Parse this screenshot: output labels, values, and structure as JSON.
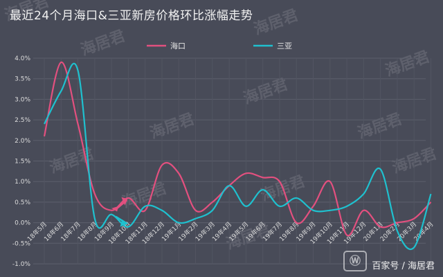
{
  "title": "最近24个月海口&三亚新房价格环比涨幅走势",
  "footer": "百家号 / 海居君",
  "watermark": "海居君",
  "chart_data": {
    "type": "line",
    "x": [
      "18年5月",
      "18年6月",
      "18年7月",
      "18年8月",
      "18年9月",
      "18年10月",
      "18年11月",
      "18年12月",
      "19年1月",
      "19年2月",
      "19年3月",
      "19年4月",
      "19年5月",
      "19年6月",
      "19年7月",
      "19年8月",
      "19年9月",
      "19年10月",
      "19年11月",
      "19年12月",
      "20年1月",
      "20年2月",
      "20年3月",
      "20年4月"
    ],
    "x_tick_labels": [
      "18年5月",
      "18年6月",
      "18年7月",
      "18年8月",
      "18年9月",
      "18年10月",
      "18年11月",
      "18年12月",
      "19年1月",
      "19年2月",
      "19年3月",
      "19年4月",
      "19年5月",
      "19年6月",
      "19年7月",
      "19年8月",
      "19年9月",
      "19年10月",
      "19年11月",
      "19年12月",
      "20年1月",
      "20年2月",
      "20年3月",
      "20年4月"
    ],
    "series": [
      {
        "name": "海口",
        "color": "#e3507f",
        "values": [
          2.1,
          3.9,
          2.4,
          0.7,
          0.3,
          0.6,
          0.3,
          1.4,
          1.2,
          0.3,
          0.5,
          0.9,
          1.2,
          1.1,
          1.0,
          0.0,
          0.4,
          1.0,
          -0.3,
          0.3,
          -0.1,
          0.0,
          0.1,
          0.5
        ]
      },
      {
        "name": "三亚",
        "color": "#1fc1cf",
        "values": [
          2.4,
          3.2,
          3.7,
          0.1,
          0.2,
          -0.1,
          0.4,
          0.3,
          0.0,
          0.1,
          0.3,
          0.9,
          0.4,
          0.8,
          0.4,
          0.6,
          0.3,
          0.3,
          0.4,
          0.7,
          1.3,
          -0.2,
          -0.6,
          0.7
        ]
      }
    ],
    "ylim": [
      -1.0,
      4.0
    ],
    "y_tick_step": 0.5,
    "y_tick_format": "percent_1dp",
    "grid": true,
    "legend_position": "top-center",
    "annotations": [
      {
        "type": "arrow",
        "color": "#e3507f",
        "at": "18年10月"
      },
      {
        "type": "arrow",
        "color": "#1fc1cf",
        "at": "18年10月"
      }
    ]
  }
}
